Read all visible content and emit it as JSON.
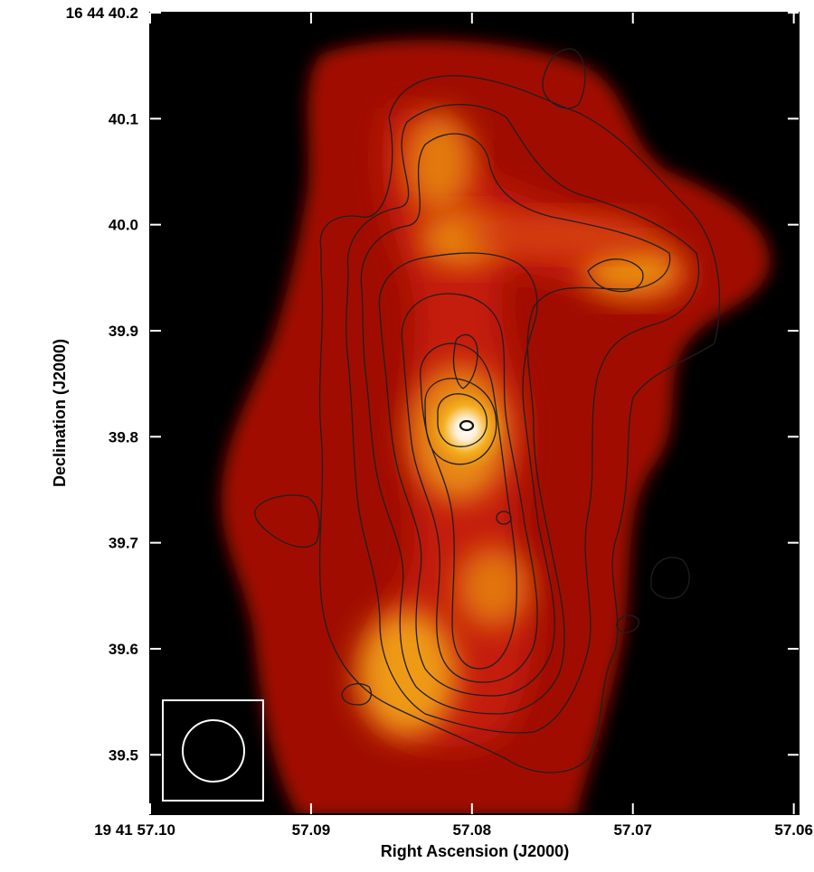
{
  "chart_data": {
    "type": "heatmap",
    "title": "",
    "xlabel": "Right Ascension (J2000)",
    "ylabel": "Declination (J2000)",
    "x_tick_labels": [
      "19 41 57.10",
      "57.09",
      "57.08",
      "57.07",
      "57.06"
    ],
    "y_tick_labels": [
      "39.5",
      "39.6",
      "39.7",
      "39.8",
      "39.9",
      "40.0",
      "40.1",
      "16 44 40.2"
    ],
    "x_ticks_seconds": [
      57.1,
      57.09,
      57.08,
      57.07,
      57.06
    ],
    "y_ticks_arcsec": [
      39.5,
      39.6,
      39.7,
      39.8,
      39.9,
      40.0,
      40.1,
      40.2
    ],
    "xlim_seconds": [
      57.1,
      57.0597
    ],
    "ylim_arcsec": [
      39.444,
      40.2
    ],
    "colormap": "black-red-orange-yellow-white",
    "background_color": "#000000",
    "contour_color": "#1f1f1f",
    "beam_marker_color": "#ffffff",
    "emission_peaks": [
      {
        "ra_s": 57.0813,
        "dec_arcsec": 39.815,
        "relative_intensity": 1.0
      },
      {
        "ra_s": 57.0832,
        "dec_arcsec": 40.06,
        "relative_intensity": 0.55
      },
      {
        "ra_s": 57.083,
        "dec_arcsec": 39.99,
        "relative_intensity": 0.5
      },
      {
        "ra_s": 57.0705,
        "dec_arcsec": 39.95,
        "relative_intensity": 0.5
      },
      {
        "ra_s": 57.0858,
        "dec_arcsec": 39.58,
        "relative_intensity": 0.62
      },
      {
        "ra_s": 57.0812,
        "dec_arcsec": 39.66,
        "relative_intensity": 0.45
      }
    ],
    "grid": false,
    "legend": "none"
  }
}
